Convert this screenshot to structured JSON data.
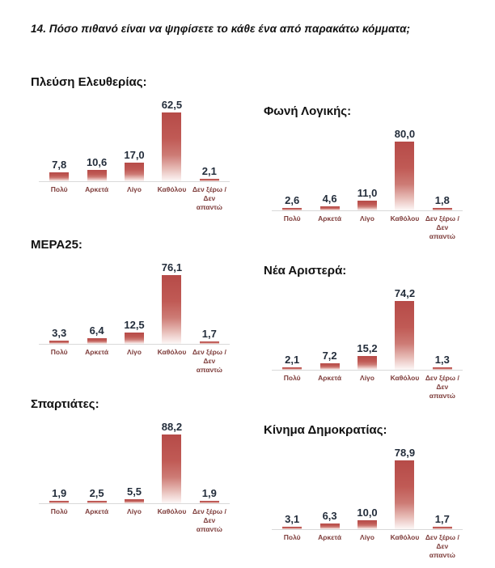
{
  "page": {
    "title": "14. Πόσο πιθανό  είναι να ψηφίσετε το κάθε ένα από παρακάτω κόμματα;"
  },
  "colors": {
    "bar_top": "#b64b48",
    "bar_mid": "#c05a55",
    "bar_fade": "#fdf8f7",
    "value_label": "#232d3b",
    "category_label": "#7e3d3b",
    "text": "#111111",
    "axis_line": "#d9d9d9"
  },
  "chart_data": [
    {
      "type": "bar",
      "title": "Πλεύση Ελευθερίας:",
      "categories": [
        "Πολύ",
        "Αρκετά",
        "Λίγο",
        "Καθόλου",
        "Δεν ξέρω / Δεν απαντώ"
      ],
      "values": [
        7.8,
        10.6,
        17.0,
        62.5,
        2.1
      ],
      "labels": [
        "7,8",
        "10,6",
        "17,0",
        "62,5",
        "2,1"
      ],
      "legend": "none",
      "grid": false
    },
    {
      "type": "bar",
      "title": "Φωνή Λογικής:",
      "categories": [
        "Πολύ",
        "Αρκετά",
        "Λίγο",
        "Καθόλου",
        "Δεν ξέρω / Δεν απαντώ"
      ],
      "values": [
        2.6,
        4.6,
        11.0,
        80.0,
        1.8
      ],
      "labels": [
        "2,6",
        "4,6",
        "11,0",
        "80,0",
        "1,8"
      ],
      "legend": "none",
      "grid": false
    },
    {
      "type": "bar",
      "title": "ΜΕΡΑ25:",
      "categories": [
        "Πολύ",
        "Αρκετά",
        "Λίγο",
        "Καθόλου",
        "Δεν ξέρω / Δεν απαντώ"
      ],
      "values": [
        3.3,
        6.4,
        12.5,
        76.1,
        1.7
      ],
      "labels": [
        "3,3",
        "6,4",
        "12,5",
        "76,1",
        "1,7"
      ],
      "legend": "none",
      "grid": false
    },
    {
      "type": "bar",
      "title": "Νέα Αριστερά:",
      "categories": [
        "Πολύ",
        "Αρκετά",
        "Λίγο",
        "Καθόλου",
        "Δεν ξέρω / Δεν απαντώ"
      ],
      "values": [
        2.1,
        7.2,
        15.2,
        74.2,
        1.3
      ],
      "labels": [
        "2,1",
        "7,2",
        "15,2",
        "74,2",
        "1,3"
      ],
      "legend": "none",
      "grid": false
    },
    {
      "type": "bar",
      "title": "Σπαρτιάτες:",
      "categories": [
        "Πολύ",
        "Αρκετά",
        "Λίγο",
        "Καθόλου",
        "Δεν ξέρω / Δεν απαντώ"
      ],
      "values": [
        1.9,
        2.5,
        5.5,
        88.2,
        1.9
      ],
      "labels": [
        "1,9",
        "2,5",
        "5,5",
        "88,2",
        "1,9"
      ],
      "legend": "none",
      "grid": false
    },
    {
      "type": "bar",
      "title": "Κίνημα Δημοκρατίας:",
      "categories": [
        "Πολύ",
        "Αρκετά",
        "Λίγο",
        "Καθόλου",
        "Δεν ξέρω / Δεν απαντώ"
      ],
      "values": [
        3.1,
        6.3,
        10.0,
        78.9,
        1.7
      ],
      "labels": [
        "3,1",
        "6,3",
        "10,0",
        "78,9",
        "1,7"
      ],
      "legend": "none",
      "grid": false
    }
  ]
}
